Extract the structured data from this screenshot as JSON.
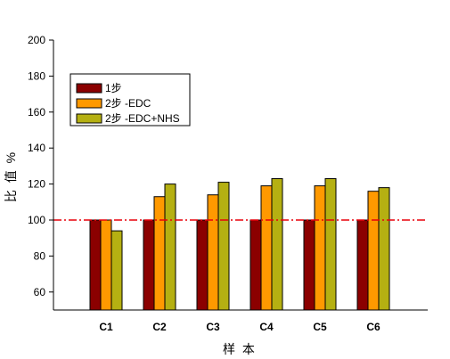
{
  "chart_data": {
    "type": "bar",
    "title": "",
    "xlabel": "样 本",
    "ylabel": "比 值 %",
    "categories": [
      "C1",
      "C2",
      "C3",
      "C4",
      "C5",
      "C6"
    ],
    "ylim": [
      50,
      200
    ],
    "yticks": [
      60,
      80,
      100,
      120,
      140,
      160,
      180,
      200
    ],
    "series": [
      {
        "name": "1步",
        "color": "#8b0000",
        "values": [
          100,
          100,
          100,
          100,
          100,
          100
        ]
      },
      {
        "name": "2步 -EDC",
        "color": "#ff9900",
        "values": [
          100,
          113,
          114,
          119,
          119,
          116
        ]
      },
      {
        "name": "2步 -EDC+NHS",
        "color": "#b5b012",
        "values": [
          94,
          120,
          121,
          123,
          123,
          118
        ]
      }
    ],
    "reference_line": {
      "value": 100,
      "color": "#e8000b",
      "style": "dash-dot"
    },
    "legend_position": "top-left",
    "grid": false
  }
}
